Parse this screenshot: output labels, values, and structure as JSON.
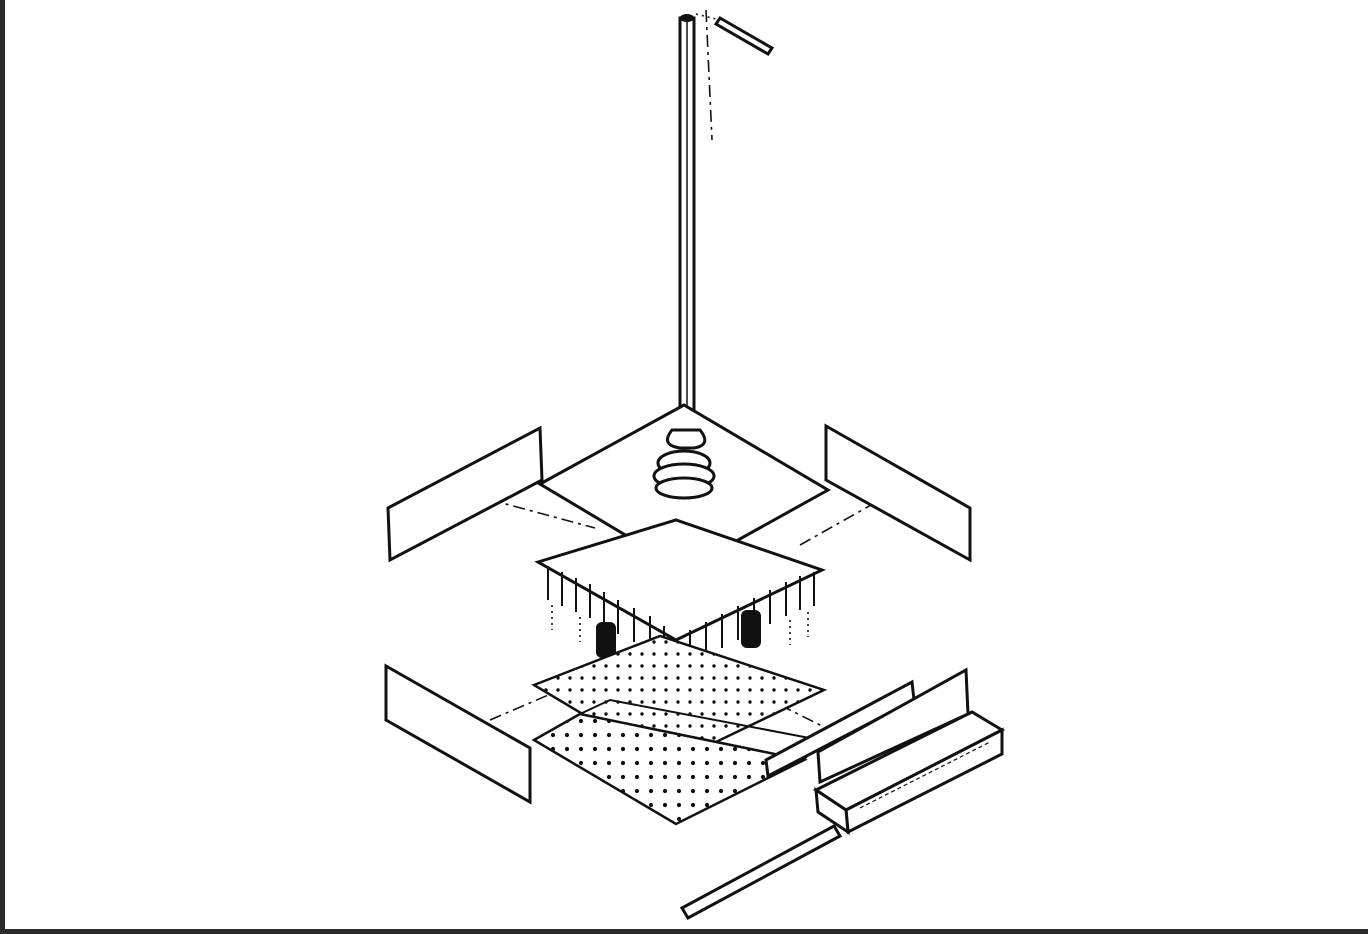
{
  "diagram": {
    "colors": {
      "ink": "#111111",
      "paper": "#ffffff",
      "frame": "#2b2b2b"
    },
    "parts": [
      "vertical-rod",
      "handle",
      "knob",
      "top-plate",
      "pin-plate",
      "spacer-posts",
      "upper-perforated-plate",
      "lower-perforated-plate",
      "side-panel-upper-left",
      "side-panel-upper-right",
      "side-panel-lower-left",
      "front-right-panels",
      "drawer-tray",
      "long-slide-bar"
    ]
  }
}
